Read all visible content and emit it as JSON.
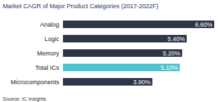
{
  "chart_data": {
    "type": "bar",
    "orientation": "horizontal",
    "title": "Market CAGR of Major Product Categories (2017-2022F)",
    "caption": "Source: IC Insights",
    "categories": [
      "Analog",
      "Logic",
      "Memory",
      "Total ICs",
      "Microcomponents"
    ],
    "values": [
      6.6,
      5.4,
      5.2,
      5.1,
      3.9
    ],
    "value_labels": [
      "6.60%",
      "5.40%",
      "5.20%",
      "5.10%",
      "3.90%"
    ],
    "colors": [
      "#2e3548",
      "#2e3548",
      "#2e3548",
      "#4cc4cf",
      "#2e3548"
    ],
    "xlim": [
      0,
      6.6
    ],
    "data_labels": true,
    "tick_labels": "y",
    "grid": false
  }
}
